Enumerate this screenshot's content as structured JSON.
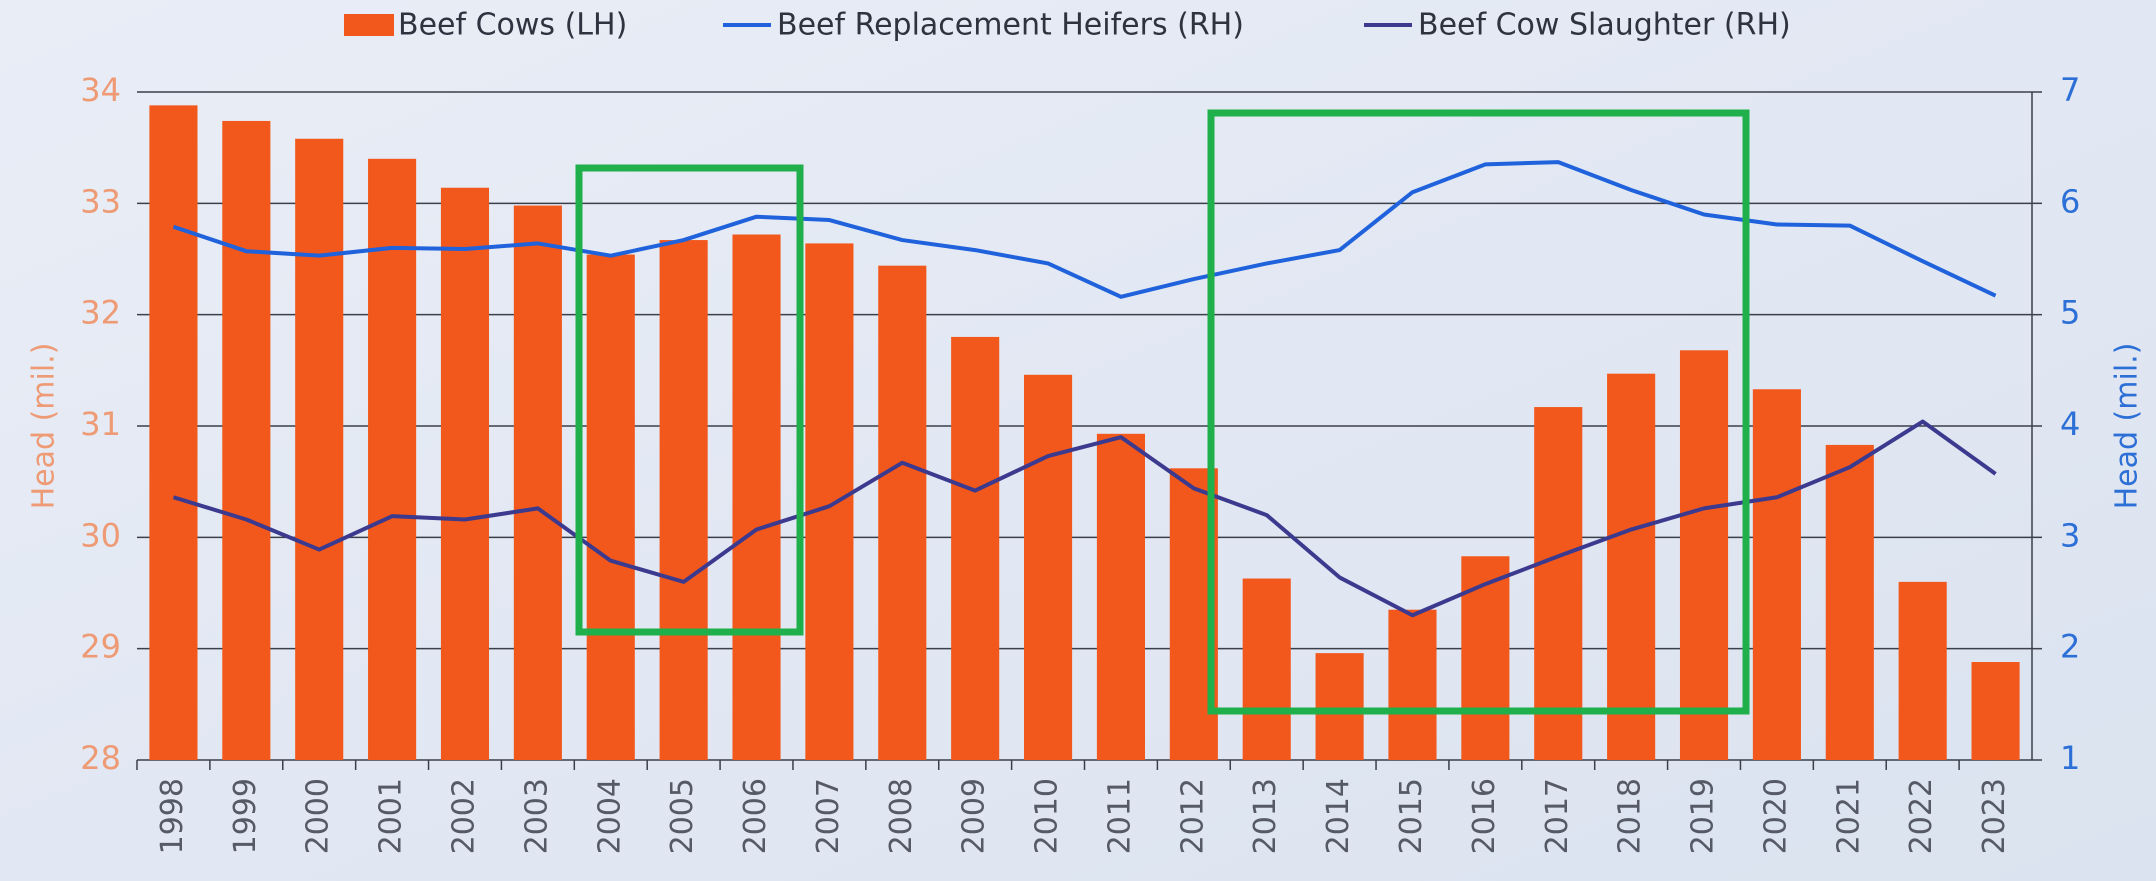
{
  "chart_data": {
    "type": "combo",
    "ylabel": "Head (mil.)",
    "y2label": "Head (mil.)",
    "categories": [
      "1998",
      "1999",
      "2000",
      "2001",
      "2002",
      "2003",
      "2004",
      "2005",
      "2006",
      "2007",
      "2008",
      "2009",
      "2010",
      "2011",
      "2012",
      "2013",
      "2014",
      "2015",
      "2016",
      "2017",
      "2018",
      "2019",
      "2020",
      "2021",
      "2022",
      "2023"
    ],
    "series": [
      {
        "name": "Beef Cows (LH)",
        "type": "bar",
        "color": "#f2581b",
        "axis": "y",
        "values": [
          33.88,
          33.74,
          33.58,
          33.4,
          33.14,
          32.98,
          32.54,
          32.67,
          32.72,
          32.64,
          32.44,
          31.8,
          31.46,
          30.93,
          30.62,
          29.63,
          28.96,
          29.35,
          29.83,
          31.17,
          31.47,
          31.68,
          31.33,
          30.83,
          29.6,
          28.88
        ]
      },
      {
        "name": "Beef Replacement Heifers (RH)",
        "type": "line",
        "color": "#1f62dc",
        "axis": "y2",
        "values": [
          5.79,
          5.57,
          5.53,
          5.6,
          5.59,
          5.64,
          5.53,
          5.67,
          5.88,
          5.85,
          5.67,
          5.58,
          5.46,
          5.16,
          5.32,
          5.46,
          5.58,
          6.1,
          6.35,
          6.37,
          6.12,
          5.9,
          5.81,
          5.8,
          5.48,
          5.17
        ]
      },
      {
        "name": "Beef Cow Slaughter (RH)",
        "type": "line",
        "color": "#3b3a8e",
        "axis": "y2",
        "values": [
          3.36,
          3.16,
          2.89,
          3.19,
          3.16,
          3.26,
          2.79,
          2.6,
          3.07,
          3.28,
          3.67,
          3.42,
          3.73,
          3.9,
          3.44,
          3.2,
          2.64,
          2.3,
          2.58,
          2.83,
          3.07,
          3.26,
          3.36,
          3.63,
          4.04,
          3.57
        ]
      }
    ],
    "ylim": [
      28,
      34
    ],
    "yticks": [
      28,
      29,
      30,
      31,
      32,
      33,
      34
    ],
    "y2lim": [
      1,
      7
    ],
    "y2ticks": [
      1,
      2,
      3,
      4,
      5,
      6,
      7
    ],
    "grid": true,
    "legend": "top"
  }
}
